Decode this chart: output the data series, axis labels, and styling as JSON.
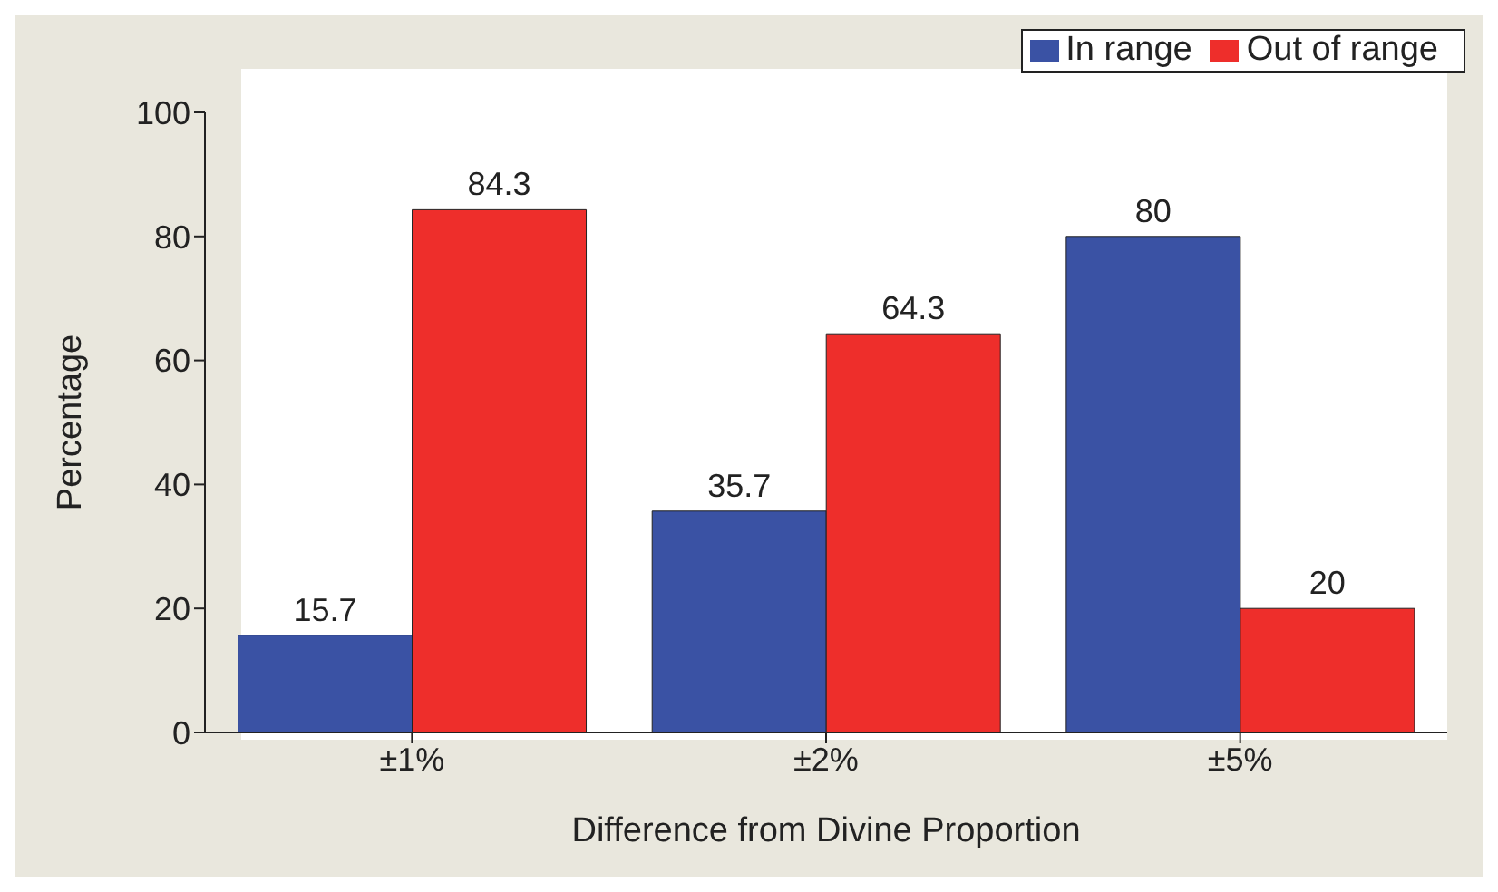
{
  "chart_data": {
    "type": "bar",
    "xlabel": "Difference from Divine Proportion",
    "ylabel": "Percentage",
    "categories": [
      "±1%",
      "±2%",
      "±5%"
    ],
    "series": [
      {
        "name": "In range",
        "color": "#3a52a4",
        "values": [
          15.7,
          35.7,
          80
        ]
      },
      {
        "name": "Out of range",
        "color": "#ee2e2b",
        "values": [
          84.3,
          64.3,
          20
        ]
      }
    ],
    "ylim": [
      0,
      100
    ],
    "yticks": [
      0,
      20,
      40,
      60,
      80,
      100
    ],
    "grid": false,
    "legend": "top right",
    "data_labels": true
  }
}
